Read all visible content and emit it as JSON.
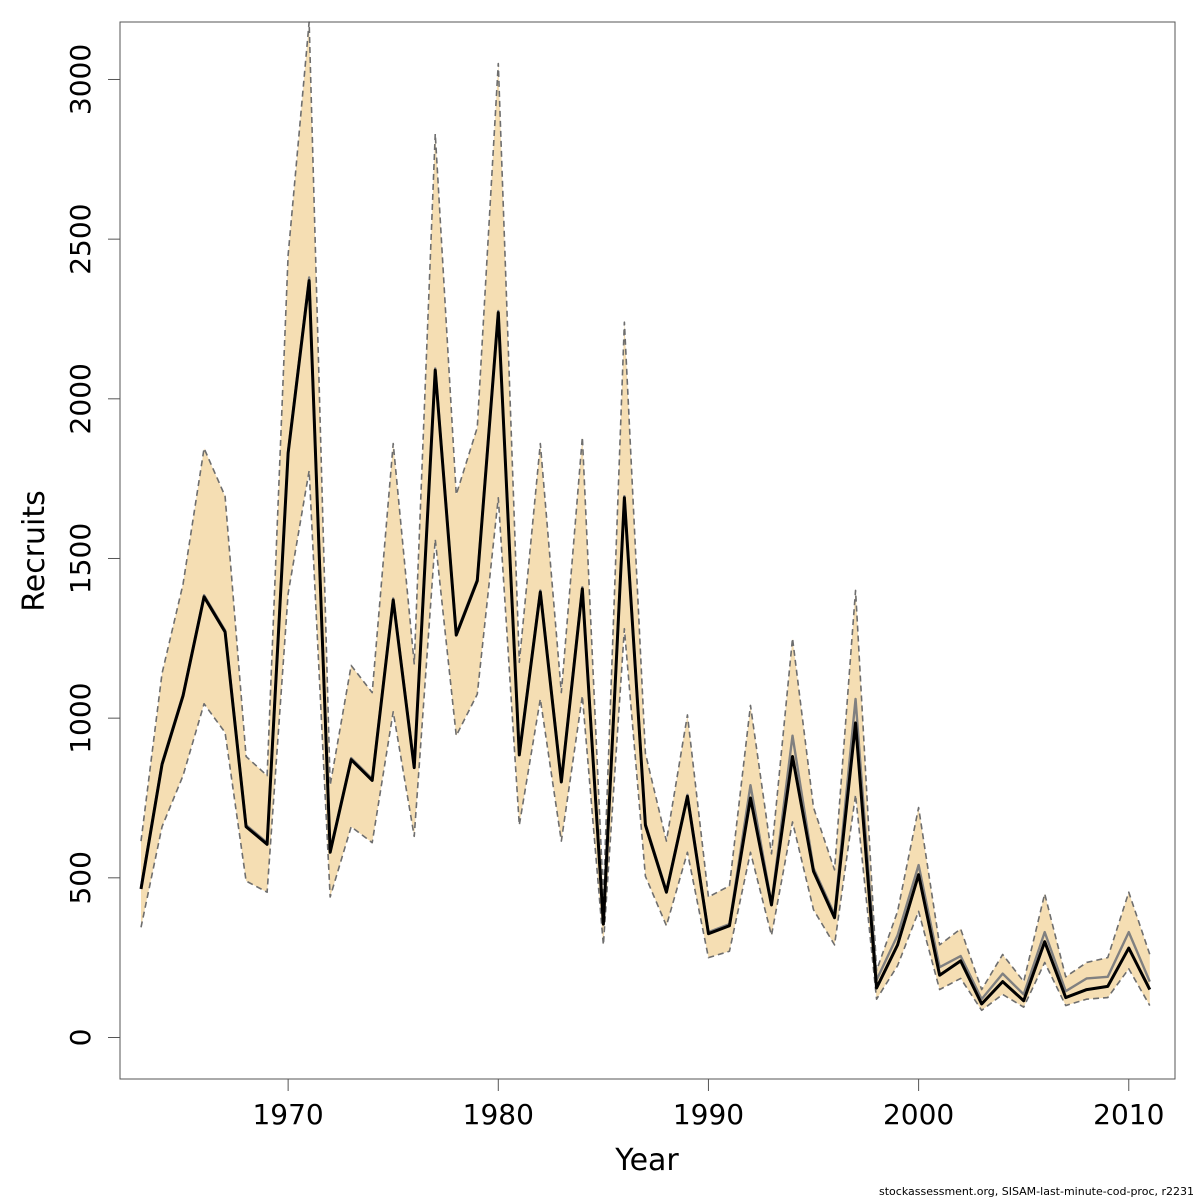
{
  "chart_data": {
    "type": "line",
    "title": "",
    "xlabel": "Year",
    "ylabel": "Recruits",
    "xlim": [
      1962,
      2012.2
    ],
    "ylim": [
      -130,
      3180
    ],
    "xticks": [
      1970,
      1980,
      1990,
      2000,
      2010
    ],
    "yticks": [
      0,
      500,
      1000,
      1500,
      2000,
      2500,
      3000
    ],
    "grid": false,
    "legend": "none",
    "colors": {
      "band": "#f5deb3",
      "estimate": "#000000",
      "previous": "#808080",
      "bounds": "#6e6e6e"
    },
    "x": [
      1963,
      1964,
      1965,
      1966,
      1967,
      1968,
      1969,
      1970,
      1971,
      1972,
      1973,
      1974,
      1975,
      1976,
      1977,
      1978,
      1979,
      1980,
      1981,
      1982,
      1983,
      1984,
      1985,
      1986,
      1987,
      1988,
      1989,
      1990,
      1991,
      1992,
      1993,
      1994,
      1995,
      1996,
      1997,
      1998,
      1999,
      2000,
      2001,
      2002,
      2003,
      2004,
      2005,
      2006,
      2007,
      2008,
      2009,
      2010,
      2011
    ],
    "series": [
      {
        "role": "estimate",
        "values": [
          465,
          855,
          1070,
          1380,
          1270,
          660,
          605,
          1830,
          2370,
          580,
          870,
          805,
          1370,
          845,
          2090,
          1260,
          1430,
          2270,
          885,
          1395,
          800,
          1405,
          355,
          1690,
          665,
          455,
          755,
          325,
          350,
          750,
          415,
          880,
          520,
          375,
          985,
          155,
          290,
          510,
          195,
          240,
          105,
          175,
          115,
          300,
          125,
          150,
          160,
          280,
          150
        ]
      },
      {
        "role": "previous",
        "values": [
          470,
          860,
          1075,
          1385,
          1275,
          665,
          610,
          1835,
          2380,
          585,
          875,
          810,
          1375,
          850,
          2095,
          1265,
          1435,
          2275,
          890,
          1400,
          805,
          1410,
          360,
          1695,
          670,
          460,
          760,
          330,
          355,
          790,
          420,
          945,
          530,
          385,
          1060,
          180,
          320,
          540,
          220,
          255,
          120,
          200,
          135,
          330,
          145,
          185,
          190,
          330,
          175
        ]
      },
      {
        "role": "lower",
        "values": [
          345,
          660,
          820,
          1045,
          955,
          490,
          455,
          1390,
          1775,
          440,
          660,
          610,
          1020,
          630,
          1560,
          945,
          1075,
          1690,
          665,
          1060,
          615,
          1070,
          290,
          1280,
          505,
          350,
          580,
          250,
          270,
          580,
          320,
          675,
          400,
          290,
          760,
          120,
          225,
          395,
          150,
          185,
          85,
          135,
          95,
          235,
          100,
          120,
          125,
          215,
          100
        ]
      },
      {
        "role": "upper",
        "values": [
          615,
          1140,
          1420,
          1845,
          1695,
          880,
          820,
          2450,
          3180,
          790,
          1165,
          1080,
          1860,
          1170,
          2830,
          1700,
          1910,
          3050,
          1175,
          1860,
          1080,
          1880,
          440,
          2240,
          890,
          615,
          1010,
          440,
          475,
          1040,
          575,
          1250,
          720,
          525,
          1400,
          210,
          395,
          720,
          290,
          340,
          150,
          260,
          175,
          450,
          190,
          235,
          250,
          455,
          260
        ]
      }
    ]
  },
  "footer": {
    "credit": "stockassessment.org, SISAM-last-minute-cod-proc, r2231"
  }
}
